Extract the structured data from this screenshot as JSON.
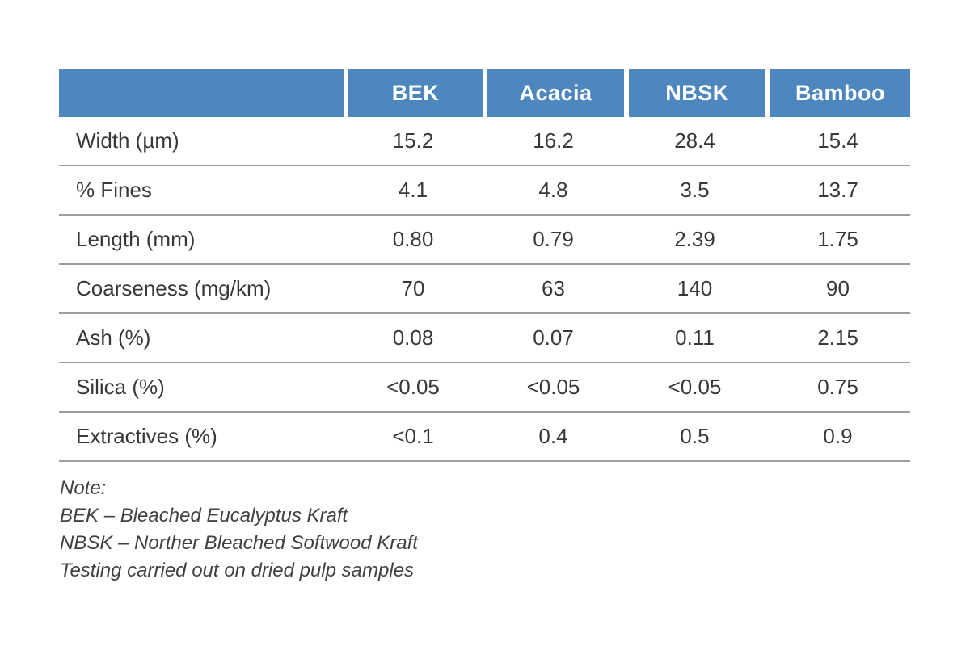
{
  "table": {
    "header": [
      "",
      "BEK",
      "Acacia",
      "NBSK",
      "Bamboo"
    ],
    "rows": [
      {
        "label": "Width (µm)",
        "values": [
          "15.2",
          "16.2",
          "28.4",
          "15.4"
        ]
      },
      {
        "label": "% Fines",
        "values": [
          "4.1",
          "4.8",
          "3.5",
          "13.7"
        ]
      },
      {
        "label": "Length (mm)",
        "values": [
          "0.80",
          "0.79",
          "2.39",
          "1.75"
        ]
      },
      {
        "label": "Coarseness (mg/km)",
        "values": [
          "70",
          "63",
          "140",
          "90"
        ]
      },
      {
        "label": "Ash (%)",
        "values": [
          "0.08",
          "0.07",
          "0.11",
          "2.15"
        ]
      },
      {
        "label": "Silica (%)",
        "values": [
          "<0.05",
          "<0.05",
          "<0.05",
          "0.75"
        ]
      },
      {
        "label": "Extractives (%)",
        "values": [
          "<0.1",
          "0.4",
          "0.5",
          "0.9"
        ]
      }
    ]
  },
  "notes": {
    "line1": "Note:",
    "line2": "BEK – Bleached Eucalyptus Kraft",
    "line3": "NBSK – Norther Bleached Softwood Kraft",
    "line4": "Testing carried out on dried pulp samples"
  },
  "colors": {
    "header_bg": "#4d87be",
    "header_text": "#ffffff",
    "body_text": "#383838",
    "divider": "#9c9c9c"
  },
  "chart_data": {
    "type": "table",
    "title": "",
    "columns": [
      "",
      "BEK",
      "Acacia",
      "NBSK",
      "Bamboo"
    ],
    "rows": [
      [
        "Width (µm)",
        "15.2",
        "16.2",
        "28.4",
        "15.4"
      ],
      [
        "% Fines",
        "4.1",
        "4.8",
        "3.5",
        "13.7"
      ],
      [
        "Length (mm)",
        "0.80",
        "0.79",
        "2.39",
        "1.75"
      ],
      [
        "Coarseness (mg/km)",
        "70",
        "63",
        "140",
        "90"
      ],
      [
        "Ash (%)",
        "0.08",
        "0.07",
        "0.11",
        "2.15"
      ],
      [
        "Silica (%)",
        "<0.05",
        "<0.05",
        "<0.05",
        "0.75"
      ],
      [
        "Extractives (%)",
        "<0.1",
        "0.4",
        "0.5",
        "0.9"
      ]
    ],
    "annotations": [
      "Note:",
      "BEK – Bleached Eucalyptus Kraft",
      "NBSK – Norther Bleached Softwood Kraft",
      "Testing carried out on dried pulp samples"
    ],
    "layout": {
      "header_fill": "#4d87be",
      "row_dividers": true,
      "grid": "horizontal-only"
    }
  }
}
